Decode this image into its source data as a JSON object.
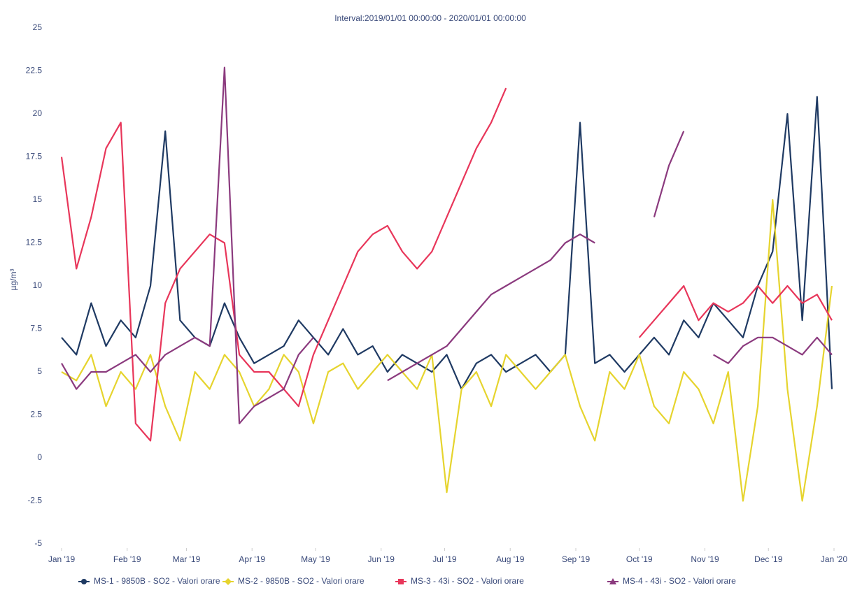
{
  "chart_data": {
    "type": "line",
    "title": "Interval:2019/01/01 00:00:00 - 2020/01/01 00:00:00",
    "y_label": "µg/m³",
    "x": [
      0,
      7,
      14,
      21,
      28,
      35,
      42,
      49,
      56,
      63,
      70,
      77,
      84,
      91,
      98,
      105,
      112,
      119,
      126,
      133,
      140,
      147,
      154,
      161,
      168,
      175,
      182,
      189,
      196,
      203,
      210,
      217,
      224,
      231,
      238,
      245,
      252,
      259,
      266,
      273,
      280,
      287,
      294,
      301,
      308,
      315,
      322,
      329,
      336,
      343,
      350,
      357,
      364
    ],
    "xlim": [
      0,
      365
    ],
    "xticks": [
      {
        "value": 0,
        "label": "Jan '19"
      },
      {
        "value": 31,
        "label": "Feb '19"
      },
      {
        "value": 59,
        "label": "Mar '19"
      },
      {
        "value": 90,
        "label": "Apr '19"
      },
      {
        "value": 120,
        "label": "May '19"
      },
      {
        "value": 151,
        "label": "Jun '19"
      },
      {
        "value": 181,
        "label": "Jul '19"
      },
      {
        "value": 212,
        "label": "Aug '19"
      },
      {
        "value": 243,
        "label": "Sep '19"
      },
      {
        "value": 273,
        "label": "Oct '19"
      },
      {
        "value": 304,
        "label": "Nov '19"
      },
      {
        "value": 334,
        "label": "Dec '19"
      },
      {
        "value": 365,
        "label": "Jan '20"
      }
    ],
    "ylim": [
      -5,
      25
    ],
    "yticks": [
      -5,
      -2.5,
      0,
      2.5,
      5,
      7.5,
      10,
      12.5,
      15,
      17.5,
      20,
      22.5,
      25
    ],
    "grid": false,
    "legend": "bottom",
    "series": [
      {
        "name": "MS-1 - 9850B - SO2 - Valori orare",
        "color": "#1f3a63",
        "marker": "circle",
        "values": [
          7,
          6,
          9,
          6.5,
          8,
          7,
          10,
          19,
          8,
          7,
          6.5,
          9,
          7,
          5.5,
          6,
          6.5,
          8,
          7,
          6,
          7.5,
          6,
          6.5,
          5,
          6,
          5.5,
          5,
          6,
          4,
          5.5,
          6,
          5,
          5.5,
          6,
          5,
          6,
          19.5,
          5.5,
          6,
          5,
          6,
          7,
          6,
          8,
          7,
          9,
          8,
          7,
          10,
          12,
          20,
          8,
          21,
          4
        ]
      },
      {
        "name": "MS-2 - 9850B - SO2 - Valori orare",
        "color": "#e6d42e",
        "marker": "diamond",
        "values": [
          5,
          4.5,
          6,
          3,
          5,
          4,
          6,
          3,
          1,
          5,
          4,
          6,
          5,
          3,
          4,
          6,
          5,
          2,
          5,
          5.5,
          4,
          5,
          6,
          5,
          4,
          6,
          -2,
          4,
          5,
          3,
          6,
          5,
          4,
          5,
          6,
          3,
          1,
          5,
          4,
          6,
          3,
          2,
          5,
          4,
          2,
          5,
          -2.5,
          3,
          15,
          4,
          -2.5,
          3,
          10
        ]
      },
      {
        "name": "MS-3 - 43i - SO2 - Valori orare",
        "color": "#e8365a",
        "marker": "square",
        "values": [
          17.5,
          11,
          14,
          18,
          19.5,
          2,
          1,
          9,
          11,
          12,
          13,
          12.5,
          6,
          5,
          5,
          4,
          3,
          6,
          8,
          10,
          12,
          13,
          13.5,
          12,
          11,
          12,
          14,
          16,
          18,
          19.5,
          21.5,
          null,
          null,
          null,
          null,
          null,
          null,
          null,
          null,
          7,
          8,
          9,
          10,
          8,
          9,
          8.5,
          9,
          10,
          9,
          10,
          9,
          9.5,
          8
        ]
      },
      {
        "name": "MS-4 - 43i - SO2 - Valori orare",
        "color": "#8b3a7e",
        "marker": "triangle",
        "values": [
          5.5,
          4,
          5,
          5,
          5.5,
          6,
          5,
          6,
          6.5,
          7,
          6.5,
          22.7,
          2,
          3,
          3.5,
          4,
          6,
          7,
          null,
          null,
          null,
          null,
          4.5,
          5,
          5.5,
          6,
          6.5,
          7.5,
          8.5,
          9.5,
          10,
          10.5,
          11,
          11.5,
          12.5,
          13,
          12.5,
          null,
          null,
          null,
          14,
          17,
          19,
          null,
          6,
          5.5,
          6.5,
          7,
          7,
          6.5,
          6,
          7,
          6
        ]
      }
    ]
  }
}
